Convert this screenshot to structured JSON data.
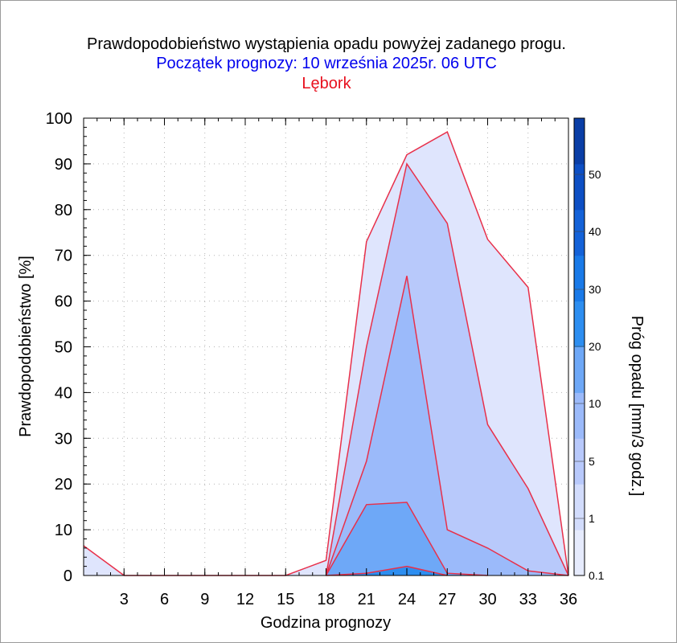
{
  "title": "Prawdopodobieństwo wystąpienia opadu powyżej zadanego progu.",
  "subtitle": "Początek prognozy: 10 września 2025r. 06 UTC",
  "location": "Lębork",
  "colors": {
    "title": "#000000",
    "subtitle": "#0000ee",
    "location": "#e8101e",
    "outline": "#e8304a"
  },
  "chart_data": {
    "type": "area",
    "title": "Prawdopodobieństwo wystąpienia opadu powyżej zadanego progu.",
    "xlabel": "Godzina prognozy",
    "ylabel": "Prawdopodobieństwo [%]",
    "colorbar_label": "Próg opadu [mm/3 godz.]",
    "xlim": [
      0,
      36
    ],
    "ylim": [
      0,
      100
    ],
    "x_ticks": [
      3,
      6,
      9,
      12,
      15,
      18,
      21,
      24,
      27,
      30,
      33,
      36
    ],
    "y_ticks": [
      0,
      10,
      20,
      30,
      40,
      50,
      60,
      70,
      80,
      90,
      100
    ],
    "grid": true,
    "x": [
      0,
      3,
      6,
      9,
      12,
      15,
      18,
      21,
      24,
      27,
      30,
      33,
      36
    ],
    "series": [
      {
        "name": "0.1",
        "color": "#dfe5fd",
        "values": [
          6.5,
          0,
          0,
          0,
          0,
          0,
          3.3,
          73,
          92,
          97,
          73.5,
          63,
          0
        ]
      },
      {
        "name": "1",
        "color": "#b8c9fb",
        "values": [
          0,
          0,
          0,
          0,
          0,
          0,
          0,
          50,
          90,
          77,
          33,
          19,
          0
        ]
      },
      {
        "name": "5",
        "color": "#9bbafa",
        "values": [
          0,
          0,
          0,
          0,
          0,
          0,
          0,
          25,
          65.5,
          10,
          6,
          1,
          0
        ]
      },
      {
        "name": "10",
        "color": "#6ea8f7",
        "values": [
          0,
          0,
          0,
          0,
          0,
          0,
          0,
          15.5,
          16,
          0.5,
          0,
          0,
          0
        ]
      },
      {
        "name": "20",
        "color": "#2d8ef0",
        "values": [
          0,
          0,
          0,
          0,
          0,
          0,
          0,
          0.5,
          2,
          0,
          0,
          0,
          0
        ]
      }
    ],
    "colorbar": {
      "thresholds": [
        "0.1",
        "1",
        "5",
        "10",
        "20",
        "30",
        "40",
        "50"
      ],
      "colors": [
        "#e6ebfd",
        "#d2dcfc",
        "#b8c9fb",
        "#9bbafa",
        "#6ea8f7",
        "#2d8ef0",
        "#1a7ae8",
        "#1462d8",
        "#0d4fc4",
        "#0a3ea6"
      ]
    }
  }
}
